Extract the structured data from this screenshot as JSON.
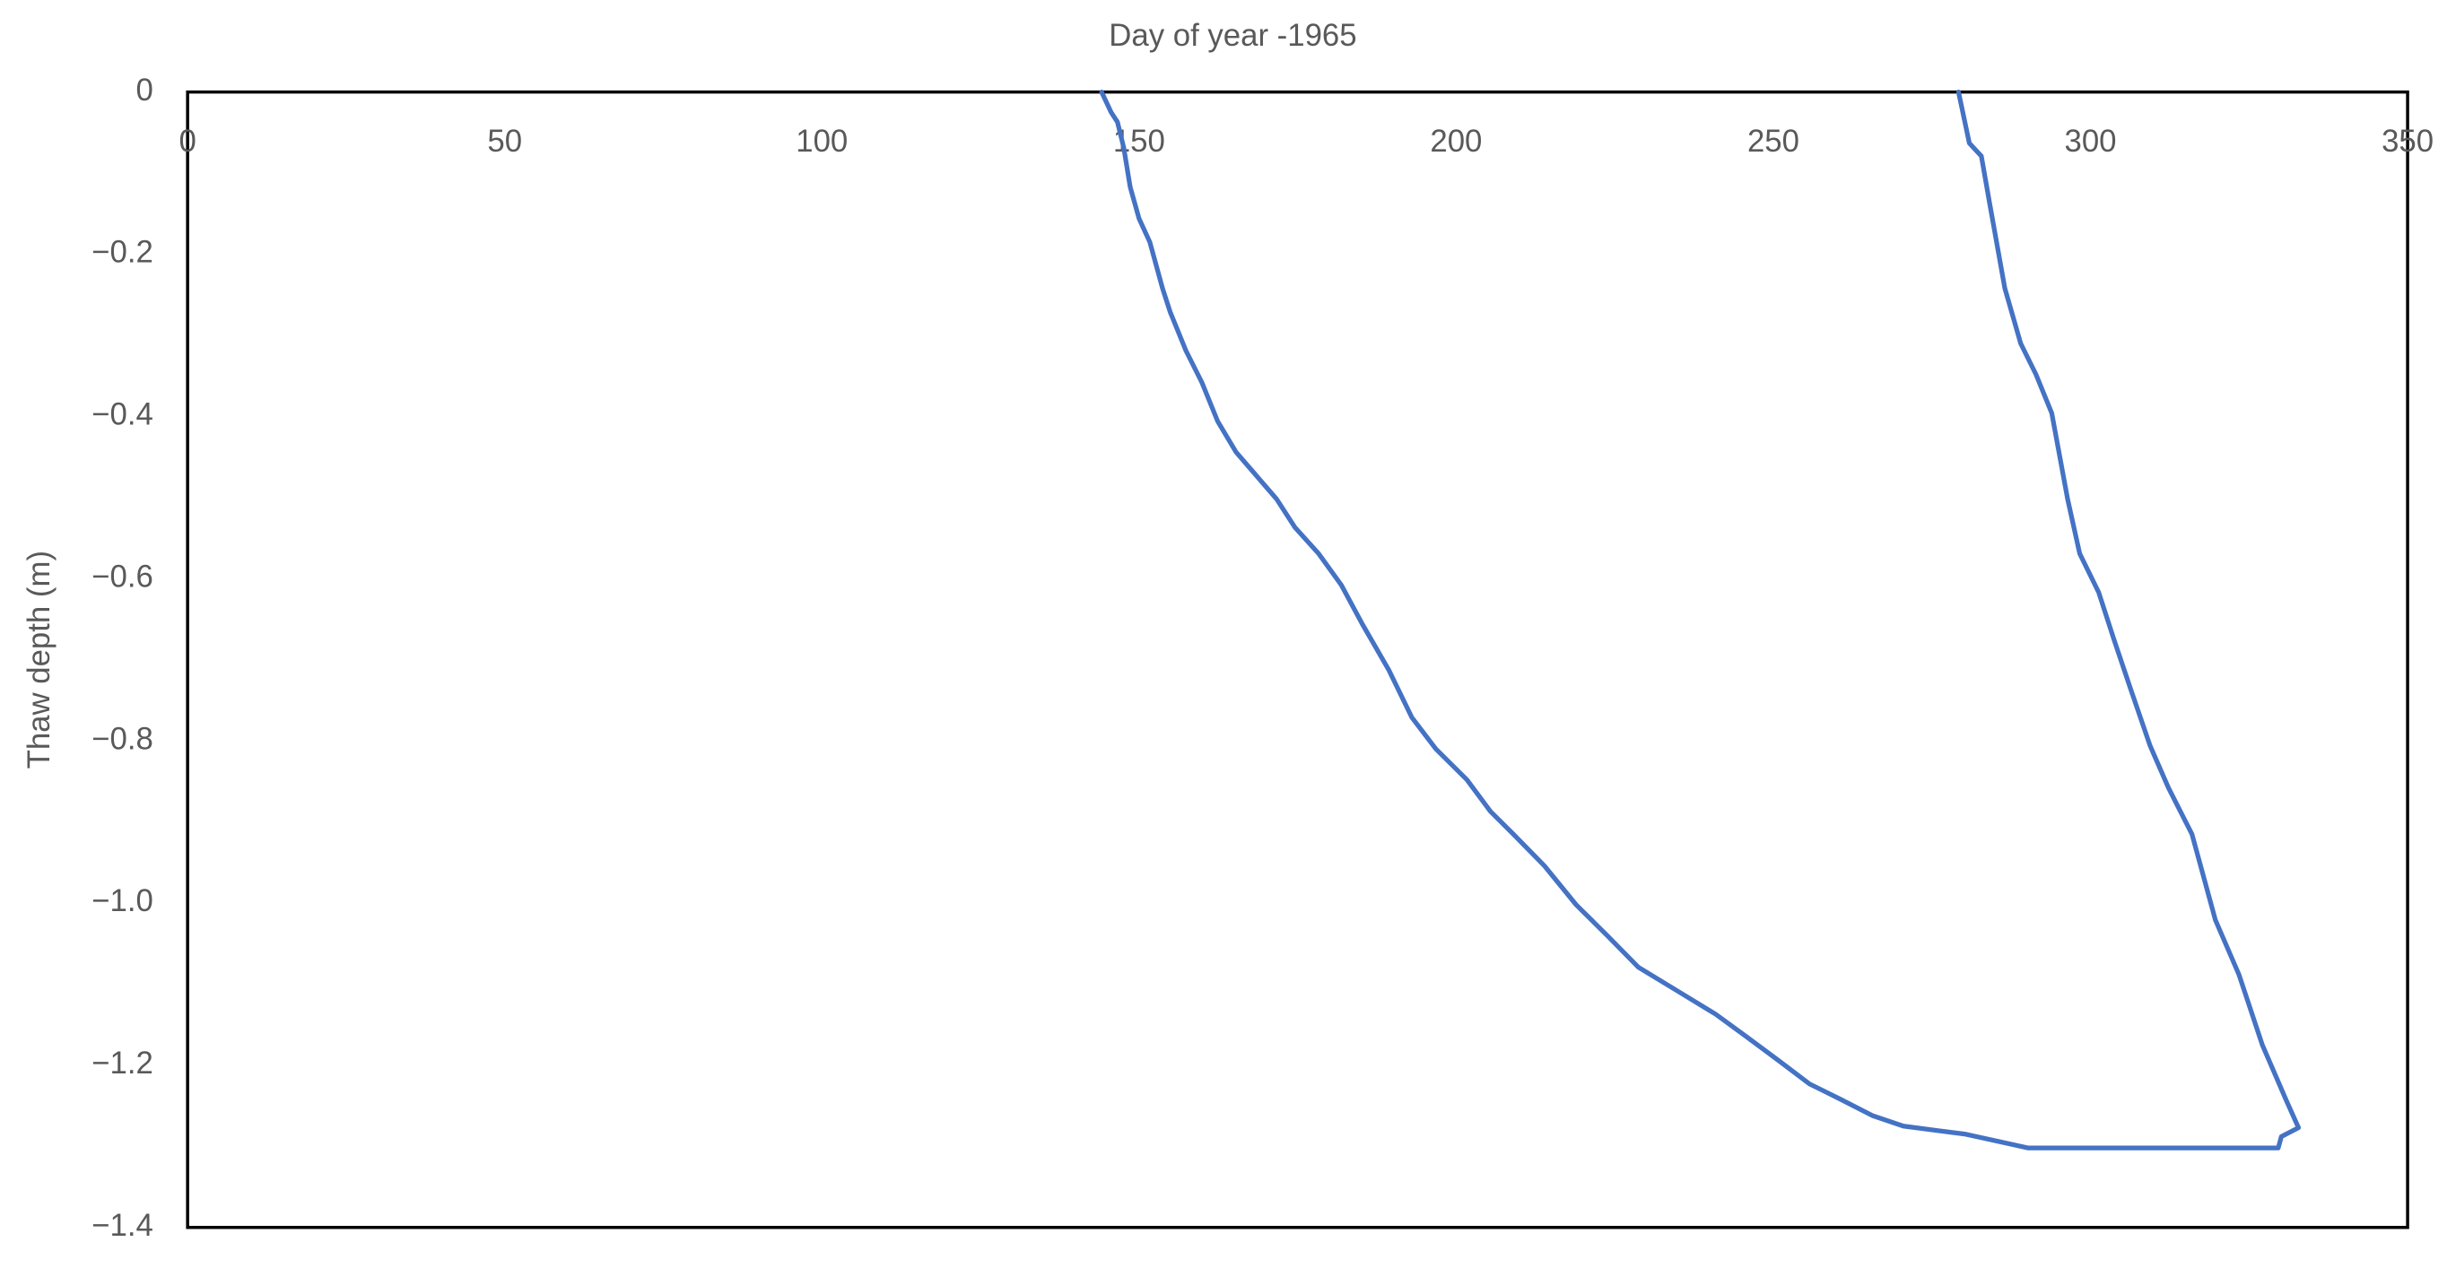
{
  "chart_data": {
    "type": "line",
    "x_label": "Day of year -1965",
    "y_label": "Thaw depth (m)",
    "x": [
      144.1,
      145.6,
      146.6,
      147.6,
      148.6,
      150.0,
      151.7,
      153.7,
      154.9,
      157.4,
      159.9,
      162.4,
      165.3,
      168.5,
      171.7,
      174.6,
      178.3,
      181.9,
      185.2,
      189.4,
      193.0,
      196.8,
      201.7,
      205.4,
      209.0,
      213.9,
      218.9,
      223.8,
      228.7,
      234.8,
      240.9,
      245.8,
      250.8,
      255.7,
      260.6,
      265.6,
      270.5,
      280.3,
      290.2,
      329.6,
      330.1,
      332.8,
      330.8,
      327.1,
      323.4,
      319.7,
      316.0,
      312.3,
      309.4,
      306.2,
      303.7,
      301.3,
      298.3,
      296.4,
      293.9,
      291.4,
      289.0,
      286.5,
      284.1,
      282.8,
      280.9,
      279.2
    ],
    "values": [
      0,
      -0.025,
      -0.037,
      -0.069,
      -0.117,
      -0.156,
      -0.185,
      -0.242,
      -0.271,
      -0.319,
      -0.358,
      -0.406,
      -0.444,
      -0.473,
      -0.502,
      -0.537,
      -0.569,
      -0.608,
      -0.656,
      -0.713,
      -0.771,
      -0.81,
      -0.848,
      -0.887,
      -0.915,
      -0.954,
      -1.002,
      -1.04,
      -1.079,
      -1.108,
      -1.137,
      -1.165,
      -1.194,
      -1.223,
      -1.242,
      -1.262,
      -1.275,
      -1.285,
      -1.302,
      -1.302,
      -1.288,
      -1.277,
      -1.242,
      -1.175,
      -1.088,
      -1.021,
      -0.915,
      -0.858,
      -0.806,
      -0.733,
      -0.675,
      -0.617,
      -0.569,
      -0.502,
      -0.396,
      -0.348,
      -0.31,
      -0.242,
      -0.137,
      -0.079,
      -0.063,
      0
    ],
    "color": "#4472c4",
    "xlim": [
      0,
      350
    ],
    "xticks": [
      0,
      50,
      100,
      150,
      200,
      250,
      300,
      350
    ],
    "ylim": [
      -1.4,
      0
    ],
    "yticks": [
      0,
      {
        "value": -0.2,
        "label": "−0.2"
      },
      {
        "value": -0.4,
        "label": "−0.4"
      },
      {
        "value": -0.6,
        "label": "−0.6"
      },
      {
        "value": -0.8,
        "label": "−0.8"
      },
      {
        "value": -1.0,
        "label": "−1.0"
      },
      {
        "value": -1.2,
        "label": "−1.2"
      },
      {
        "value": -1.4,
        "label": "−1.4"
      }
    ],
    "x_axis_position": "top",
    "grid": false
  }
}
